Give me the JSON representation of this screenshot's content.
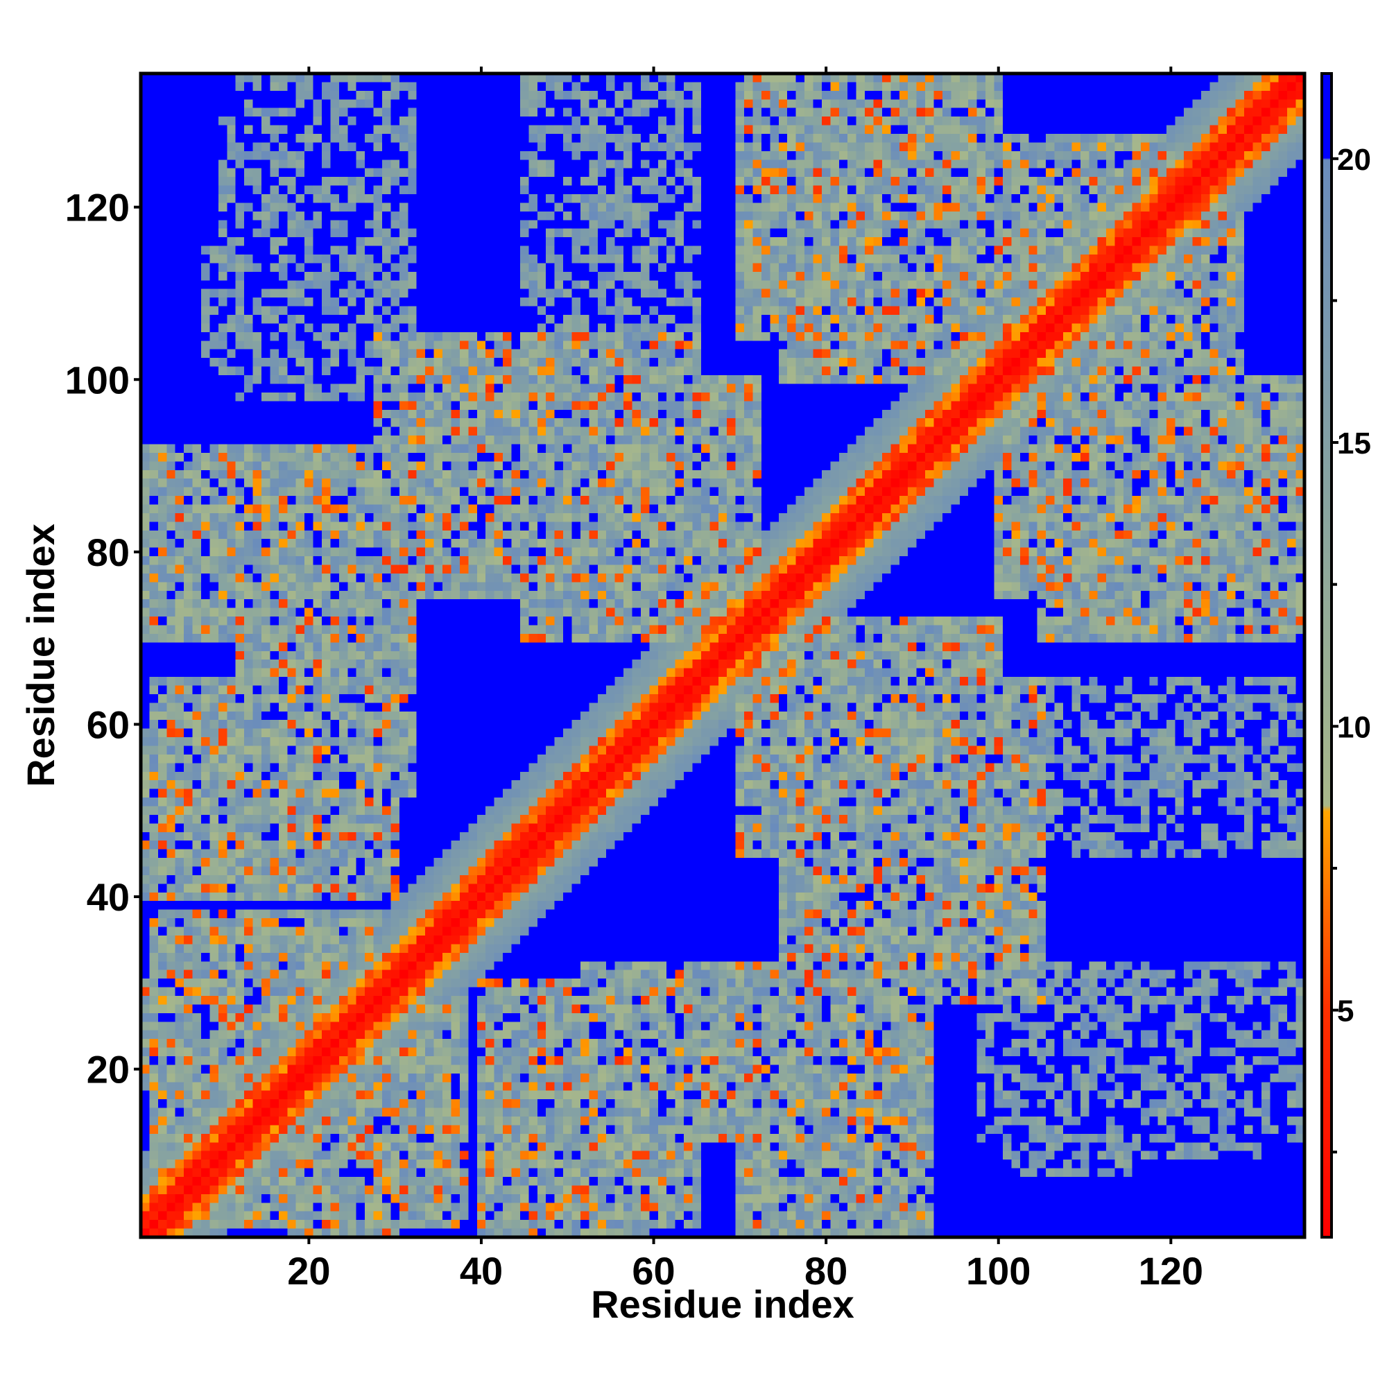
{
  "chart_data": {
    "type": "heatmap",
    "title": "",
    "xlabel": "Residue index",
    "ylabel": "Residue index",
    "n": 135,
    "xlim": [
      1,
      135
    ],
    "ylim": [
      1,
      135
    ],
    "x_ticks": [
      20,
      40,
      60,
      80,
      100,
      120
    ],
    "y_ticks": [
      20,
      40,
      60,
      80,
      100,
      120
    ],
    "colorbar": {
      "ticks": [
        5,
        10,
        15,
        20
      ],
      "range": [
        1,
        21.5
      ],
      "stops": [
        {
          "value": 1,
          "color": "#ff0000"
        },
        {
          "value": 5,
          "color": "#ff3000"
        },
        {
          "value": 8.5,
          "color": "#ffa500"
        },
        {
          "value": 8.6,
          "color": "#a8b88a"
        },
        {
          "value": 14,
          "color": "#88a4a0"
        },
        {
          "value": 20,
          "color": "#6a8cbc"
        },
        {
          "value": 20.01,
          "color": "#0000ff"
        },
        {
          "value": 21.5,
          "color": "#0000ff"
        }
      ]
    },
    "cutoff_value": 20,
    "background_color": "#0000ff",
    "diagonal_color": "#ff0000",
    "contact_color": "#ff8c00",
    "near_color": "#a8b88a",
    "far_color": "#6a8cbc",
    "contact_blocks": [
      {
        "x": [
          1,
          30
        ],
        "y": [
          70,
          92
        ]
      },
      {
        "x": [
          1,
          12
        ],
        "y": [
          40,
          60
        ]
      },
      {
        "x": [
          15,
          32
        ],
        "y": [
          52,
          90
        ]
      },
      {
        "x": [
          1,
          10
        ],
        "y": [
          18,
          30
        ]
      },
      {
        "x": [
          6,
          38
        ],
        "y": [
          2,
          28
        ]
      },
      {
        "x": [
          40,
          65
        ],
        "y": [
          2,
          30
        ]
      },
      {
        "x": [
          60,
          88
        ],
        "y": [
          12,
          32
        ]
      },
      {
        "x": [
          75,
          105
        ],
        "y": [
          28,
          62
        ]
      },
      {
        "x": [
          80,
          105
        ],
        "y": [
          45,
          65
        ]
      },
      {
        "x": [
          45,
          72
        ],
        "y": [
          70,
          100
        ]
      },
      {
        "x": [
          75,
          100
        ],
        "y": [
          100,
          128
        ]
      },
      {
        "x": [
          95,
          120
        ],
        "y": [
          100,
          128
        ]
      },
      {
        "x": [
          105,
          135
        ],
        "y": [
          70,
          100
        ]
      },
      {
        "x": [
          112,
          135
        ],
        "y": [
          78,
          92
        ]
      }
    ],
    "sparse_blocks": [
      {
        "x": [
          12,
          32
        ],
        "y": [
          98,
          135
        ]
      },
      {
        "x": [
          45,
          65
        ],
        "y": [
          100,
          135
        ]
      },
      {
        "x": [
          100,
          115
        ],
        "y": [
          8,
          28
        ]
      },
      {
        "x": [
          115,
          130
        ],
        "y": [
          10,
          30
        ]
      },
      {
        "x": [
          120,
          135
        ],
        "y": [
          45,
          60
        ]
      }
    ]
  }
}
